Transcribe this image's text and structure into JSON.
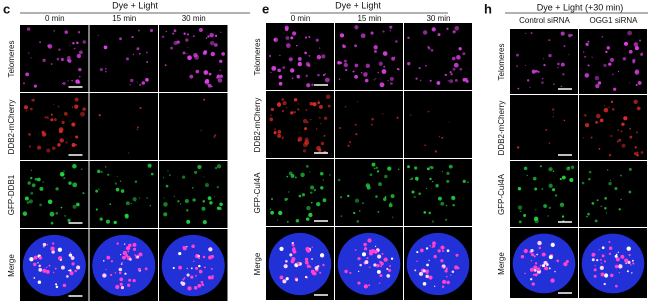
{
  "panels": [
    {
      "label": "c",
      "header": "Dye + Light",
      "columns": [
        "0 min",
        "15 min",
        "30 min"
      ],
      "rows": [
        "Telomeres",
        "DDB2-mCherry",
        "GFP-DDB1",
        "Merge"
      ]
    },
    {
      "label": "e",
      "header": "Dye + Light",
      "columns": [
        "0 min",
        "15 min",
        "30 min"
      ],
      "rows": [
        "Telomeres",
        "DDB2-mCherry",
        "GFP-Cul4A",
        "Merge"
      ]
    },
    {
      "label": "h",
      "header": "Dye + Light (+30 min)",
      "columns": [
        "Control siRNA",
        "OGG1 siRNA"
      ],
      "rows": [
        "Telomeres",
        "DDB2-mCherry",
        "GFP-Cul4A",
        "Merge"
      ]
    }
  ]
}
